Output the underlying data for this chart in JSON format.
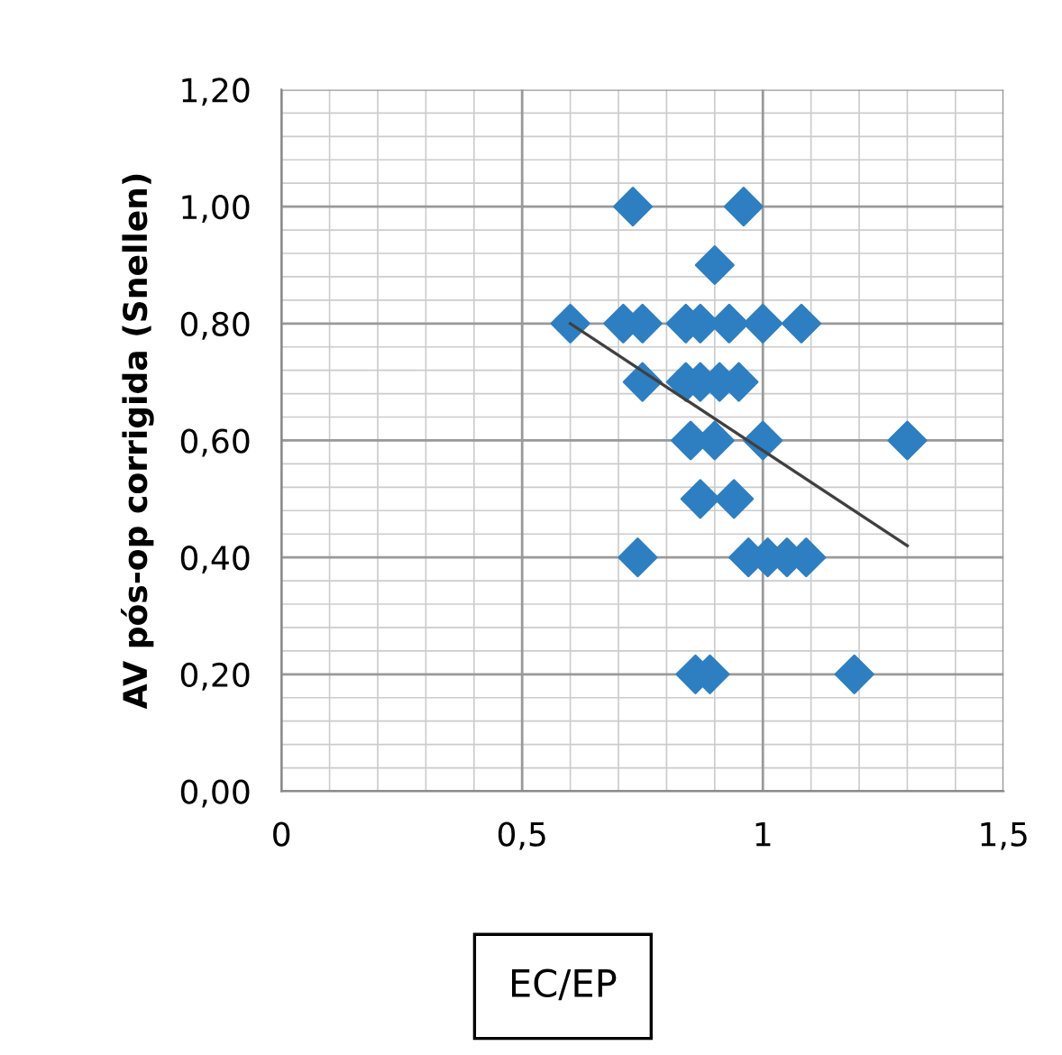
{
  "chart_data": {
    "type": "scatter",
    "xlabel": "EC/EP",
    "ylabel": "AV pós-op corrigida (Snellen)",
    "xlim": [
      0,
      1.5
    ],
    "xticks": [
      0,
      {
        "value": 0.5,
        "label": "0,5"
      },
      1,
      {
        "value": 1.5,
        "label": "1,5"
      }
    ],
    "ylim": [
      0,
      1.2
    ],
    "yticks": [
      {
        "value": 0,
        "label": "0,00"
      },
      {
        "value": 0.2,
        "label": "0,20"
      },
      {
        "value": 0.4,
        "label": "0,40"
      },
      {
        "value": 0.6,
        "label": "0,60"
      },
      {
        "value": 0.8,
        "label": "0,80"
      },
      {
        "value": 1.0,
        "label": "1,00"
      },
      {
        "value": 1.2,
        "label": "1,20"
      }
    ],
    "grid": true,
    "marker": "diamond",
    "legend": false,
    "series": [
      {
        "color": "#2e7fc1",
        "x": [
          0.73,
          0.96,
          0.9,
          0.6,
          0.71,
          0.75,
          0.84,
          0.87,
          0.93,
          1.0,
          1.08,
          0.75,
          0.84,
          0.87,
          0.91,
          0.95,
          0.85,
          0.9,
          1.0,
          1.3,
          0.87,
          0.94,
          0.74,
          0.97,
          1.01,
          1.05,
          1.09,
          0.86,
          0.89,
          1.19
        ],
        "values": [
          1.0,
          1.0,
          0.9,
          0.8,
          0.8,
          0.8,
          0.8,
          0.8,
          0.8,
          0.8,
          0.8,
          0.7,
          0.7,
          0.7,
          0.7,
          0.7,
          0.6,
          0.6,
          0.6,
          0.6,
          0.5,
          0.5,
          0.4,
          0.4,
          0.4,
          0.4,
          0.4,
          0.2,
          0.2,
          0.2
        ]
      },
      {
        "type": "line",
        "color": "#404040",
        "x": [
          0.6,
          1.3
        ],
        "values": [
          0.8,
          0.42
        ],
        "marker": "none"
      }
    ]
  }
}
